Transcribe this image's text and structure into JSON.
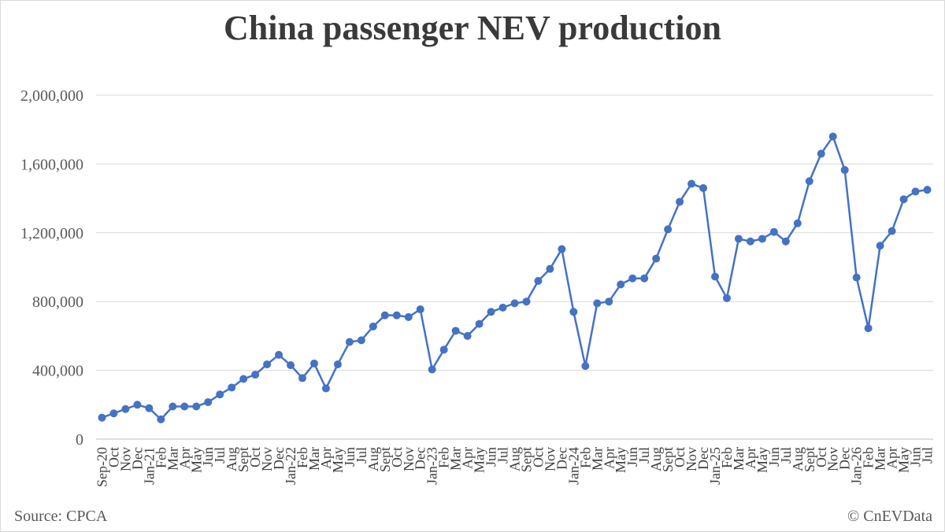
{
  "chart_data": {
    "type": "line",
    "title": "China passenger NEV production",
    "xlabel": "",
    "ylabel": "",
    "ylim": [
      0,
      2000000
    ],
    "yticks": [
      0,
      400000,
      800000,
      1200000,
      1600000,
      2000000
    ],
    "ytick_labels": [
      "0",
      "400,000",
      "800,000",
      "1,200,000",
      "1,600,000",
      "2,000,000"
    ],
    "grid": true,
    "legend": "none",
    "line_color": "#4472c4",
    "categories": [
      "Sep-20",
      "Oct",
      "Nov",
      "Dec",
      "Jan-21",
      "Feb",
      "Mar",
      "Apr",
      "May",
      "Jun",
      "Jul",
      "Aug",
      "Sept",
      "Oct",
      "Nov",
      "Dec",
      "Jan-22",
      "Feb",
      "Mar",
      "Apr",
      "May",
      "Jun",
      "Jul",
      "Aug",
      "Sept",
      "Oct",
      "Nov",
      "Dec",
      "Jan-23",
      "Feb",
      "Mar",
      "Apr",
      "May",
      "Jun",
      "Jul",
      "Aug",
      "Sept",
      "Oct",
      "Nov",
      "Dec",
      "Jan-24",
      "Feb",
      "Mar",
      "Apr",
      "May",
      "Jun",
      "Jul",
      "Aug",
      "Sept",
      "Oct",
      "Nov",
      "Dec",
      "Jan-25",
      "Feb",
      "Mar",
      "Apr",
      "May",
      "Jun",
      "Jul",
      "Aug",
      "Sept",
      "Oct",
      "Nov",
      "Dec",
      "Jan-26",
      "Feb",
      "Mar",
      "Apr",
      "May",
      "Jun",
      "Jul"
    ],
    "series": [
      {
        "values": [
          125000,
          150000,
          175000,
          200000,
          180000,
          115000,
          190000,
          190000,
          190000,
          215000,
          260000,
          300000,
          350000,
          375000,
          435000,
          490000,
          430000,
          355000,
          440000,
          295000,
          435000,
          565000,
          575000,
          655000,
          720000,
          720000,
          710000,
          755000,
          405000,
          520000,
          630000,
          600000,
          670000,
          740000,
          765000,
          790000,
          800000,
          920000,
          990000,
          1105000,
          740000,
          425000,
          790000,
          800000,
          900000,
          935000,
          935000,
          1050000,
          1220000,
          1380000,
          1485000,
          1460000,
          945000,
          820000,
          1165000,
          1150000,
          1165000,
          1205000,
          1150000,
          1255000,
          1500000,
          1660000,
          1760000,
          1565000,
          940000,
          645000,
          1125000,
          1210000,
          1395000,
          1440000,
          1450000
        ]
      }
    ]
  },
  "footer": {
    "source": "Source: CPCA",
    "copyright": "© CnEVData"
  }
}
